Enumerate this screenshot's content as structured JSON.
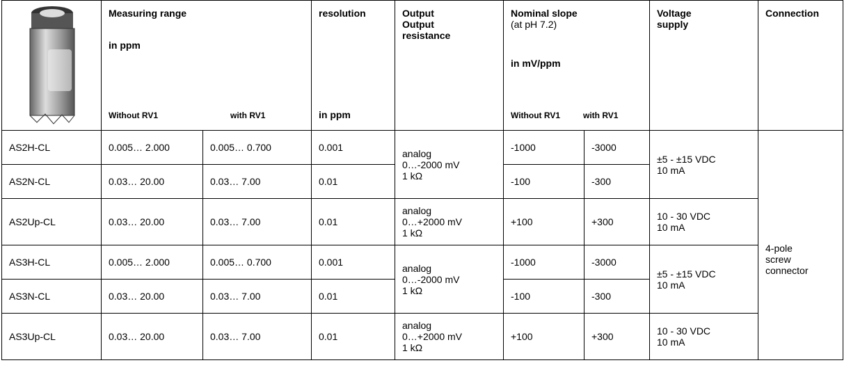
{
  "header": {
    "measuring_range": "Measuring range",
    "measuring_unit": "in ppm",
    "range_without": "Without RV1",
    "range_with": "with RV1",
    "resolution": "resolution",
    "resolution_unit": "in ppm",
    "output": [
      "Output",
      "Output",
      "resistance"
    ],
    "slope": "Nominal slope",
    "slope_note": "(at pH 7.2)",
    "slope_unit": "in mV/ppm",
    "slope_without": "Without RV1",
    "slope_with": "with RV1",
    "voltage": [
      "Voltage",
      "supply"
    ],
    "connection": "Connection"
  },
  "rows": [
    [
      "AS2H-CL",
      "0.005… 2.000",
      "0.005… 0.700",
      "0.001",
      "-1000",
      "-3000"
    ],
    [
      "AS2N-CL",
      "0.03… 20.00",
      "0.03… 7.00",
      "0.01",
      "-100",
      "-300"
    ],
    [
      "AS2Up-CL",
      "0.03… 20.00",
      "0.03… 7.00",
      "0.01",
      "+100",
      "+300"
    ],
    [
      "AS3H-CL",
      "0.005… 2.000",
      "0.005… 0.700",
      "0.001",
      "-1000",
      "-3000"
    ],
    [
      "AS3N-CL",
      "0.03… 20.00",
      "0.03… 7.00",
      "0.01",
      "-100",
      "-300"
    ],
    [
      "AS3Up-CL",
      "0.03… 20.00",
      "0.03… 7.00",
      "0.01",
      "+100",
      "+300"
    ]
  ],
  "outputs": [
    [
      "analog",
      "0…-2000 mV",
      "1 kΩ"
    ],
    [
      "analog",
      "0…+2000 mV",
      "1 kΩ"
    ],
    [
      "analog",
      "0…-2000 mV",
      "1 kΩ"
    ],
    [
      "analog",
      "0…+2000 mV",
      "1 kΩ"
    ]
  ],
  "voltages": [
    [
      "±5 - ±15 VDC",
      "10 mA"
    ],
    [
      "10 - 30 VDC",
      "10 mA"
    ],
    [
      "±5 - ±15 VDC",
      "10 mA"
    ],
    [
      "10 - 30 VDC",
      "10 mA"
    ]
  ],
  "connection": [
    "4-pole",
    "screw",
    "connector"
  ]
}
